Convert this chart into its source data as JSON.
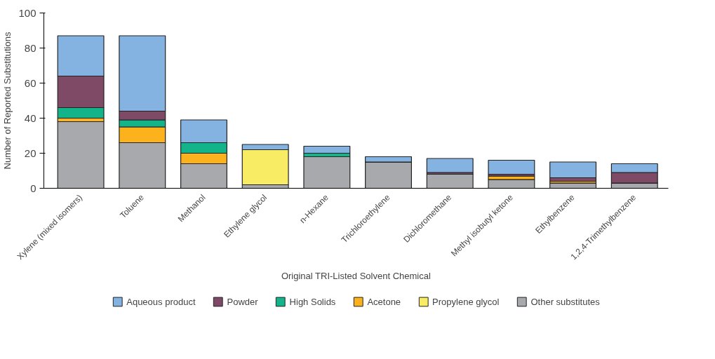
{
  "chart_data": {
    "type": "bar",
    "stacked": true,
    "xlabel": "Original TRI-Listed Solvent Chemical",
    "ylabel": "Number of Reported Substitutions",
    "categories": [
      "Xylene (mixed isomers)",
      "Toluene",
      "Methanol",
      "Ethylene glycol",
      "n-Hexane",
      "Trichloroethylene",
      "Dichloromethane",
      "Methyl isobutyl ketone",
      "Ethylbenzene",
      "1,2,4-Trimethylbenzene"
    ],
    "series": [
      {
        "name": "Other substitutes",
        "color": "#a7a9ac",
        "values": [
          38,
          26,
          14,
          2,
          18,
          15,
          8,
          5,
          3,
          3
        ]
      },
      {
        "name": "Propylene glycol",
        "color": "#f7ec63",
        "values": [
          0,
          0,
          0,
          20,
          0,
          0,
          0,
          0,
          0,
          0
        ]
      },
      {
        "name": "Acetone",
        "color": "#fbb21c",
        "values": [
          2,
          9,
          6,
          0,
          0,
          0,
          0,
          2,
          1,
          0
        ]
      },
      {
        "name": "High Solids",
        "color": "#13b48a",
        "values": [
          6,
          4,
          6,
          0,
          2,
          0,
          0,
          0,
          0,
          0
        ]
      },
      {
        "name": "Powder",
        "color": "#7e4a66",
        "values": [
          18,
          5,
          0,
          0,
          0,
          0,
          1,
          1,
          2,
          6
        ]
      },
      {
        "name": "Aqueous product",
        "color": "#84b3e1",
        "values": [
          23,
          43,
          13,
          3,
          4,
          3,
          8,
          8,
          9,
          5
        ]
      }
    ],
    "ylim": [
      0,
      100
    ],
    "yticks": [
      0,
      20,
      40,
      60,
      80,
      100
    ],
    "grid": false,
    "legend": "bottom"
  }
}
